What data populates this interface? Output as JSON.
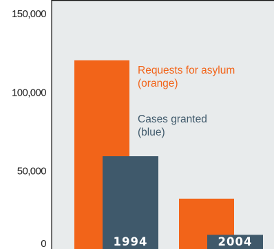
{
  "chart_data": {
    "type": "bar",
    "title": "",
    "xlabel": "",
    "ylabel": "",
    "ylim": [
      0,
      150000
    ],
    "yticks": [
      {
        "value": 0,
        "label": "0"
      },
      {
        "value": 50000,
        "label": "50,000"
      },
      {
        "value": 100000,
        "label": "100,000"
      },
      {
        "value": 150000,
        "label": "150,000"
      }
    ],
    "grid": false,
    "legend_placement": "top-right",
    "categories": [
      "1994",
      "2004"
    ],
    "series": [
      {
        "name": "Requests for asylum (orange)",
        "label_lines": [
          "Requests for asylum",
          "(orange)"
        ],
        "color": "#f26419",
        "values": [
          120000,
          32000
        ]
      },
      {
        "name": "Cases granted (blue)",
        "label_lines": [
          "Cases granted",
          "(blue)"
        ],
        "color": "#3f596b",
        "values": [
          59000,
          9000
        ]
      }
    ],
    "colors": {
      "plot_background": "#e8ebec",
      "frame": "#111111",
      "legend_series_0": "#f26419",
      "legend_series_1": "#3f596b",
      "category_label": "#ffffff"
    }
  }
}
